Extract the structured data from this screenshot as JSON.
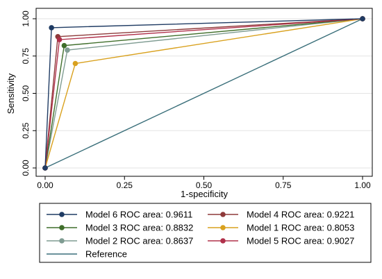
{
  "chart_data": {
    "type": "line",
    "title": "",
    "xlabel": "1-specificity",
    "ylabel": "Sensitivity",
    "xlim": [
      0,
      1
    ],
    "ylim": [
      0,
      1
    ],
    "xticks": [
      "0.00",
      "0.25",
      "0.50",
      "0.75",
      "1.00"
    ],
    "yticks": [
      "0.00",
      "0.25",
      "0.50",
      "0.75",
      "1.00"
    ],
    "xtick_values": [
      0,
      0.25,
      0.5,
      0.75,
      1
    ],
    "ytick_values": [
      0,
      0.25,
      0.5,
      0.75,
      1
    ],
    "grid": "horizontal",
    "legend_position": "bottom",
    "series": [
      {
        "name": "Model 6 ROC area: 0.9611",
        "color": "#1f3b63",
        "x": [
          0,
          0.02,
          1
        ],
        "y": [
          0,
          0.94,
          1
        ]
      },
      {
        "name": "Model 4 ROC area: 0.9221",
        "color": "#8e3a3a",
        "x": [
          0,
          0.04,
          1
        ],
        "y": [
          0,
          0.88,
          1
        ]
      },
      {
        "name": "Model 3 ROC area: 0.8832",
        "color": "#3f6e2a",
        "x": [
          0,
          0.06,
          1
        ],
        "y": [
          0,
          0.82,
          1
        ]
      },
      {
        "name": "Model 1 ROC area: 0.8053",
        "color": "#d9a11e",
        "x": [
          0,
          0.095,
          1
        ],
        "y": [
          0,
          0.7,
          1
        ]
      },
      {
        "name": "Model 2 ROC area: 0.8637",
        "color": "#7f9c92",
        "x": [
          0,
          0.07,
          1
        ],
        "y": [
          0,
          0.79,
          1
        ]
      },
      {
        "name": "Model 5 ROC area: 0.9027",
        "color": "#b0304a",
        "x": [
          0,
          0.045,
          1
        ],
        "y": [
          0,
          0.86,
          1
        ]
      },
      {
        "name": "Reference",
        "color": "#3a6f7a",
        "x": [
          0,
          1
        ],
        "y": [
          0,
          1
        ],
        "markers": false
      }
    ]
  }
}
